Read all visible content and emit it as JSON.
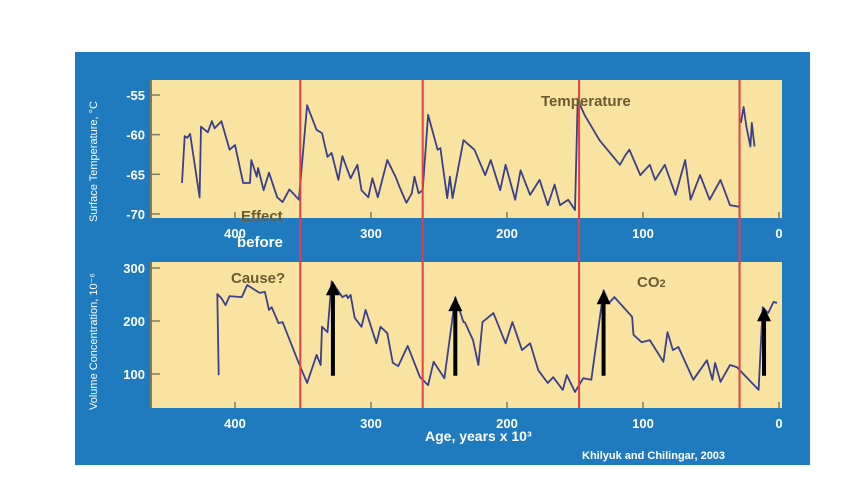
{
  "chart_data": [
    {
      "type": "line",
      "title": "Temperature",
      "ylabel": "Surface Temperature, °C",
      "xlabel": "",
      "ylim": [
        -71,
        -53
      ],
      "xlim": [
        0,
        460
      ],
      "x_reversed": true,
      "yticks": [
        -55,
        -60,
        -65,
        -70
      ],
      "xticks": [
        400,
        300,
        200,
        100,
        0
      ],
      "series": [
        {
          "name": "Temperature",
          "segments": [
            [
              [
                439,
                -66.1
              ],
              [
                437,
                -60.2
              ],
              [
                435,
                -60.4
              ],
              [
                433,
                -59.9
              ],
              [
                426,
                -67.9
              ],
              [
                425,
                -59
              ],
              [
                420,
                -59.7
              ],
              [
                417,
                -58.3
              ],
              [
                415,
                -59.2
              ],
              [
                410,
                -58.3
              ],
              [
                404,
                -61.9
              ],
              [
                400,
                -61.3
              ],
              [
                394,
                -66.1
              ],
              [
                389,
                -66.1
              ],
              [
                388,
                -63.2
              ],
              [
                384,
                -65.3
              ],
              [
                383,
                -64.2
              ],
              [
                379,
                -67
              ],
              [
                375,
                -64.8
              ],
              [
                369,
                -67.9
              ],
              [
                365,
                -68.5
              ],
              [
                360,
                -66.9
              ],
              [
                353,
                -68.2
              ],
              [
                347,
                -56.3
              ],
              [
                340,
                -59.4
              ],
              [
                336,
                -59.8
              ],
              [
                332,
                -62.8
              ],
              [
                329,
                -62.3
              ],
              [
                324,
                -65.7
              ],
              [
                321,
                -62.7
              ],
              [
                315,
                -65.5
              ],
              [
                310,
                -63.8
              ],
              [
                307,
                -67
              ],
              [
                302,
                -67.9
              ],
              [
                299,
                -65.5
              ],
              [
                295,
                -67.9
              ],
              [
                288,
                -63.2
              ],
              [
                282,
                -65.3
              ],
              [
                279,
                -66.6
              ],
              [
                274,
                -68.6
              ],
              [
                270,
                -67.4
              ],
              [
                268,
                -65.3
              ],
              [
                265,
                -67.4
              ],
              [
                262,
                -67
              ],
              [
                258,
                -57.5
              ],
              [
                251,
                -61.9
              ],
              [
                249,
                -61.7
              ],
              [
                244,
                -68
              ],
              [
                242,
                -65.3
              ],
              [
                240,
                -68
              ],
              [
                232,
                -60.7
              ],
              [
                224,
                -61.9
              ],
              [
                216,
                -65.1
              ],
              [
                212,
                -63.2
              ],
              [
                205,
                -67
              ],
              [
                201,
                -63.8
              ],
              [
                194,
                -68.2
              ],
              [
                190,
                -64.5
              ],
              [
                183,
                -67.6
              ],
              [
                176,
                -65.7
              ],
              [
                170,
                -68.9
              ],
              [
                165,
                -66.3
              ],
              [
                161,
                -68.9
              ],
              [
                155,
                -68.2
              ],
              [
                150,
                -69.5
              ],
              [
                148,
                -55.6
              ],
              [
                143,
                -57.5
              ],
              [
                132,
                -60.7
              ],
              [
                117,
                -63.8
              ],
              [
                113,
                -62.6
              ],
              [
                110,
                -61.9
              ],
              [
                102,
                -65.1
              ],
              [
                95,
                -63.8
              ],
              [
                91,
                -65.7
              ],
              [
                84,
                -63.8
              ],
              [
                76,
                -67.6
              ],
              [
                69,
                -63.2
              ],
              [
                65,
                -68.2
              ],
              [
                58,
                -65.1
              ],
              [
                51,
                -68.2
              ],
              [
                43,
                -65.7
              ],
              [
                36,
                -68.9
              ],
              [
                29,
                -69.1
              ]
            ],
            [
              [
                28,
                -58.5
              ],
              [
                26,
                -56.5
              ],
              [
                24,
                -59
              ],
              [
                21,
                -61.5
              ],
              [
                20,
                -58.5
              ],
              [
                18,
                -61.5
              ]
            ]
          ]
        }
      ],
      "annotations": [
        "Temperature",
        "Effect",
        "before"
      ]
    },
    {
      "type": "line",
      "title": "CO2",
      "ylabel": "Volume Concentration, 10⁻⁶",
      "xlabel": "Age, years x 10³",
      "ylim": [
        40,
        310
      ],
      "xlim": [
        0,
        460
      ],
      "x_reversed": true,
      "yticks": [
        300,
        200,
        100
      ],
      "xticks": [
        400,
        300,
        200,
        100,
        0
      ],
      "series": [
        {
          "name": "CO2",
          "segments": [
            [
              [
                412,
                98
              ],
              [
                413,
                251
              ],
              [
                410,
                243
              ],
              [
                407,
                230
              ],
              [
                404,
                247
              ],
              [
                395,
                245
              ],
              [
                391,
                268
              ],
              [
                385,
                258
              ],
              [
                382,
                253
              ],
              [
                378,
                255
              ],
              [
                375,
                221
              ],
              [
                373,
                226
              ],
              [
                368,
                196
              ],
              [
                365,
                198
              ],
              [
                354,
                126
              ],
              [
                347,
                83
              ],
              [
                340,
                136
              ],
              [
                337,
                117
              ],
              [
                336,
                189
              ],
              [
                332,
                179
              ],
              [
                329,
                275
              ],
              [
                321,
                245
              ],
              [
                318,
                249
              ],
              [
                317,
                243
              ],
              [
                315,
                249
              ],
              [
                312,
                206
              ],
              [
                307,
                189
              ],
              [
                304,
                221
              ],
              [
                296,
                158
              ],
              [
                293,
                189
              ],
              [
                288,
                177
              ],
              [
                284,
                121
              ],
              [
                280,
                115
              ],
              [
                273,
                153
              ],
              [
                264,
                94
              ],
              [
                258,
                79
              ],
              [
                254,
                123
              ],
              [
                246,
                92
              ],
              [
                238,
                245
              ],
              [
                232,
                198
              ],
              [
                231,
                198
              ],
              [
                225,
                164
              ],
              [
                221,
                117
              ],
              [
                218,
                198
              ],
              [
                210,
                215
              ],
              [
                201,
                158
              ],
              [
                196,
                198
              ],
              [
                189,
                145
              ],
              [
                183,
                158
              ],
              [
                177,
                107
              ],
              [
                170,
                83
              ],
              [
                166,
                94
              ],
              [
                159,
                70
              ],
              [
                156,
                98
              ],
              [
                150,
                66
              ],
              [
                144,
                92
              ],
              [
                138,
                89
              ],
              [
                129,
                258
              ],
              [
                125,
                234
              ],
              [
                121,
                245
              ],
              [
                108,
                208
              ],
              [
                107,
                174
              ],
              [
                101,
                160
              ],
              [
                95,
                164
              ],
              [
                85,
                123
              ],
              [
                82,
                179
              ],
              [
                78,
                145
              ],
              [
                74,
                151
              ],
              [
                63,
                89
              ],
              [
                53,
                126
              ],
              [
                49,
                89
              ],
              [
                47,
                121
              ],
              [
                43,
                85
              ],
              [
                36,
                117
              ],
              [
                31,
                113
              ],
              [
                15,
                70
              ],
              [
                12,
                226
              ],
              [
                8,
                215
              ],
              [
                4,
                236
              ],
              [
                1.5,
                234
              ]
            ]
          ]
        }
      ],
      "arrows": [
        {
          "age": 328,
          "from": 40,
          "to": 275
        },
        {
          "age": 238,
          "from": 40,
          "to": 245
        },
        {
          "age": 129,
          "from": 40,
          "to": 258
        },
        {
          "age": 11,
          "from": 40,
          "to": 226
        }
      ],
      "annotations": [
        "Cause?",
        "CO2"
      ]
    }
  ],
  "divider_ages": [
    352,
    262,
    147,
    29
  ],
  "labels": {
    "temperature": "Temperature",
    "effect": "Effect",
    "before": "before",
    "cause": "Cause?",
    "co2": "CO",
    "co2_sub": "2",
    "ylabel_top": "Surface Temperature, °C",
    "ylabel_bottom": "Volume Concentration, 10⁻⁶",
    "xlabel": "Age, years x 10³",
    "credit": "Khilyuk and Chilingar, 2003"
  },
  "colors": {
    "panel": "#1f7bbd",
    "plot": "#f8e3a0",
    "line": "#3b3f8c",
    "divider": "#e0404a",
    "arrow": "#000000"
  }
}
